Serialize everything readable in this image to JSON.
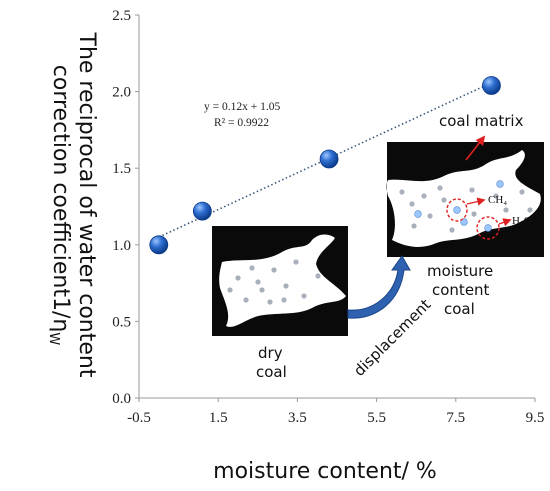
{
  "chart_data": {
    "type": "scatter",
    "title": "",
    "xlabel": "moisture content/ %",
    "ylabel_lines": [
      "The reciprocal of water content",
      "correction coefficient1/η"
    ],
    "ylabel_subscript": "W",
    "xlim": [
      -0.5,
      9.5
    ],
    "ylim": [
      0.0,
      2.5
    ],
    "xticks": [
      "-0.5",
      "1.5",
      "3.5",
      "5.5",
      "7.5",
      "9.5"
    ],
    "yticks": [
      "0.0",
      "0.5",
      "1.0",
      "1.5",
      "2.0",
      "2.5"
    ],
    "series": [
      {
        "x": [
          0.0,
          1.1,
          4.3,
          8.4
        ],
        "y": [
          1.0,
          1.22,
          1.56,
          2.04
        ]
      }
    ],
    "trendline": {
      "slope": 0.12,
      "intercept": 1.05,
      "style": "dotted"
    },
    "equation": "y = 0.12x + 1.05",
    "r_squared": "R² = 0.9922",
    "grid": false,
    "legend": "none"
  },
  "annotations": {
    "coal_matrix": "coal matrix",
    "ch4": "CH₄",
    "h2o": "H₂O",
    "moisture_coal": [
      "moisture",
      "content",
      "coal"
    ],
    "dry_coal": [
      "dry",
      "coal"
    ],
    "displacement": "displacement"
  },
  "colors": {
    "marker": "#2f6fd1",
    "marker_dark": "#0c3b8a",
    "trendline": "#3b5a80",
    "arrow_blue": "#2e62b0",
    "arrow_red": "#e02020",
    "matrix": "#0a0a0a"
  }
}
